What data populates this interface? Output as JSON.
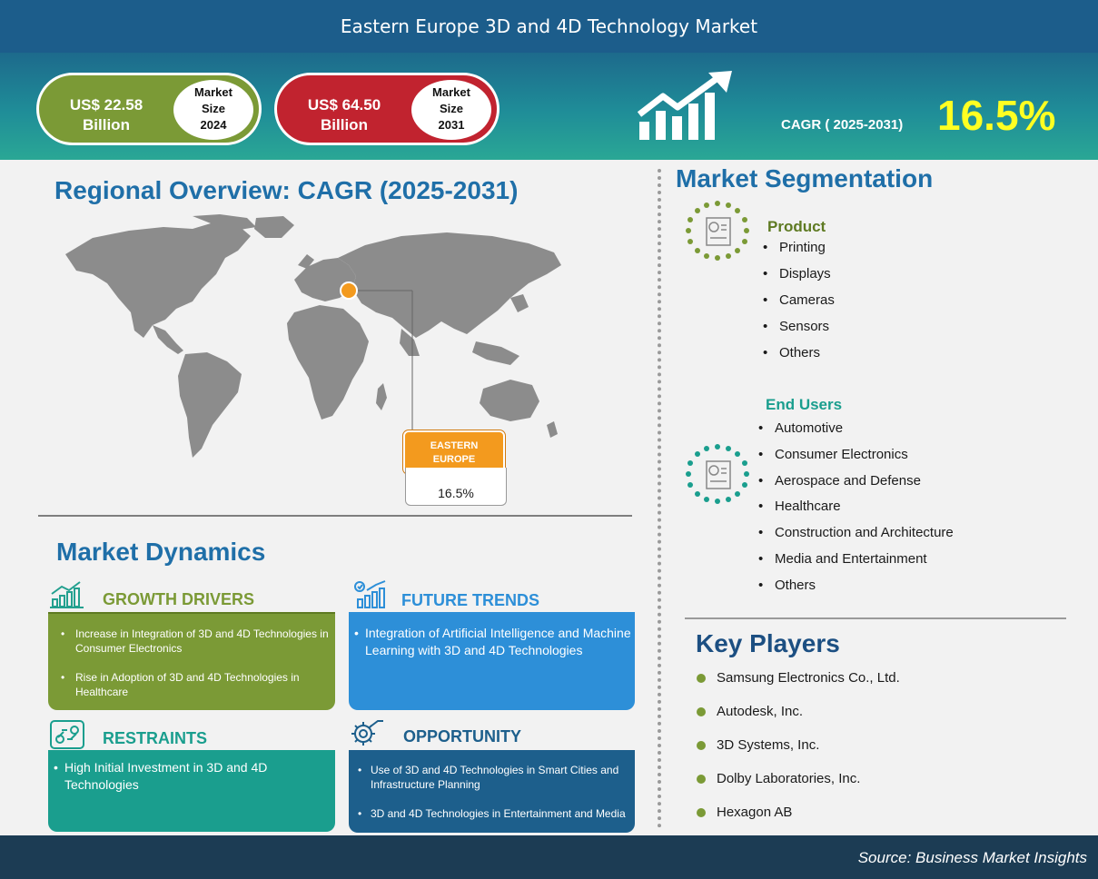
{
  "header": {
    "title": "Eastern Europe 3D and 4D Technology Market"
  },
  "stats": {
    "size_2024": {
      "amount_line1": "US$ 22.58",
      "amount_line2": "Billion",
      "label_line1": "Market",
      "label_line2": "Size",
      "label_line3": "2024"
    },
    "size_2031": {
      "amount_line1": "US$ 64.50",
      "amount_line2": "Billion",
      "label_line1": "Market",
      "label_line2": "Size",
      "label_line3": "2031"
    },
    "cagr_label": "CAGR ( 2025-2031)",
    "cagr_value": "16.5%",
    "colors": {
      "size_2024": "#7b9a36",
      "size_2031": "#c1232f",
      "cagr_value": "#ffff22"
    }
  },
  "regional": {
    "title": "Regional Overview: CAGR (2025-2031)",
    "region_line1": "EASTERN",
    "region_line2": "EUROPE",
    "region_value": "16.5%",
    "marker_color": "#f39a1e"
  },
  "dynamics": {
    "title": "Market Dynamics",
    "growth_drivers": {
      "heading": "GROWTH DRIVERS",
      "items": [
        "Increase in Integration of 3D and 4D Technologies in Consumer Electronics",
        "Rise in Adoption of 3D and 4D Technologies in Healthcare"
      ]
    },
    "future_trends": {
      "heading": "FUTURE TRENDS",
      "items": [
        "Integration of Artificial Intelligence and Machine Learning with 3D and 4D Technologies"
      ]
    },
    "restraints": {
      "heading": "RESTRAINTS",
      "items": [
        "High Initial Investment in 3D and 4D Technologies"
      ]
    },
    "opportunity": {
      "heading": "OPPORTUNITY",
      "items": [
        "Use of 3D and 4D Technologies in Smart Cities and Infrastructure Planning",
        "3D and 4D Technologies in Entertainment and Media"
      ]
    }
  },
  "segmentation": {
    "title": "Market Segmentation",
    "product": {
      "heading": "Product",
      "items": [
        "Printing",
        "Displays",
        "Cameras",
        "Sensors",
        "Others"
      ]
    },
    "end_users": {
      "heading": "End Users",
      "items": [
        "Automotive",
        "Consumer Electronics",
        "Aerospace and Defense",
        "Healthcare",
        "Construction and Architecture",
        "Media and Entertainment",
        "Others"
      ]
    }
  },
  "key_players": {
    "title": "Key Players",
    "items": [
      "Samsung Electronics Co., Ltd.",
      "Autodesk, Inc.",
      "3D Systems, Inc.",
      "Dolby Laboratories,  Inc.",
      "Hexagon AB"
    ]
  },
  "footer": {
    "source": "Source: Business Market Insights"
  }
}
